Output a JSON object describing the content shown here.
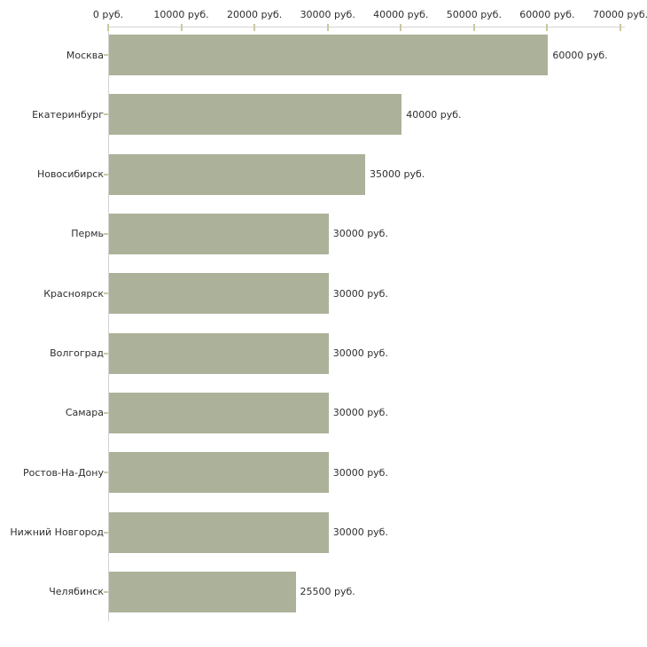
{
  "chart_data": {
    "type": "bar",
    "orientation": "horizontal",
    "title": "",
    "xlabel": "",
    "ylabel": "",
    "unit": "руб.",
    "categories": [
      "Москва",
      "Екатеринбург",
      "Новосибирск",
      "Пермь",
      "Красноярск",
      "Волгоград",
      "Самара",
      "Ростов-На-Дону",
      "Нижний Новгород",
      "Челябинск"
    ],
    "values": [
      60000,
      40000,
      35000,
      30000,
      30000,
      30000,
      30000,
      30000,
      30000,
      25500
    ],
    "value_labels": [
      "60000 руб.",
      "40000 руб.",
      "35000 руб.",
      "30000 руб.",
      "30000 руб.",
      "30000 руб.",
      "30000 руб.",
      "30000 руб.",
      "30000 руб.",
      "25500 руб."
    ],
    "x_ticks": [
      0,
      10000,
      20000,
      30000,
      40000,
      50000,
      60000,
      70000
    ],
    "x_tick_labels": [
      "0 руб.",
      "10000 руб.",
      "20000 руб.",
      "30000 руб.",
      "40000 руб.",
      "50000 руб.",
      "60000 руб.",
      "70000 руб."
    ],
    "xlim": [
      0,
      70000
    ],
    "grid": false,
    "legend": false,
    "legend_position": "none",
    "colors": {
      "bar": "#acb299",
      "axis_line": "#d4d4d4",
      "tick": "#c9c9a0",
      "text": "#2e2e2e",
      "background": "#ffffff"
    }
  }
}
